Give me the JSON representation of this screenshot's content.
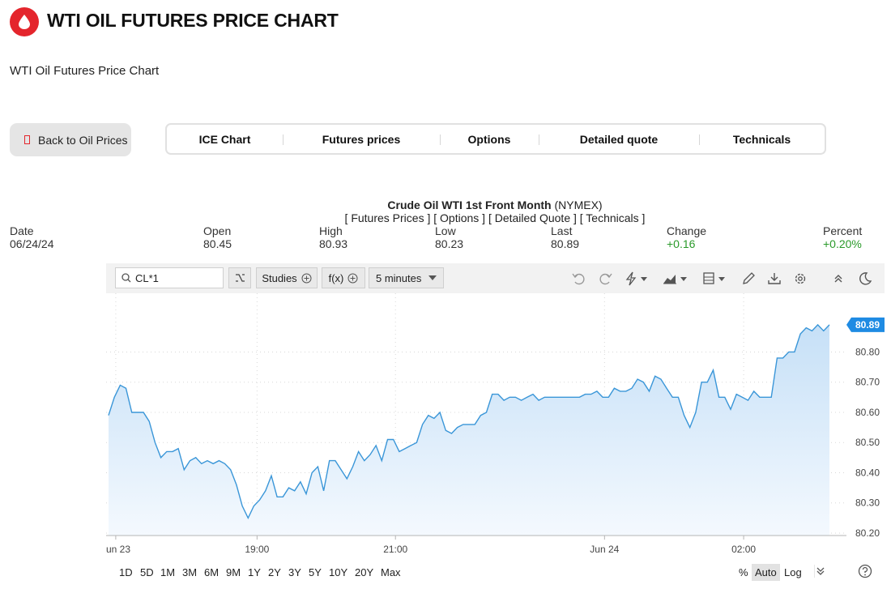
{
  "header": {
    "title": "WTI OIL FUTURES PRICE CHART",
    "subtitle": "WTI Oil Futures Price Chart",
    "logo_icon": "oil-drop-icon",
    "brand_color": "#e4252c"
  },
  "nav": {
    "back_label": "Back to Oil Prices",
    "tabs": [
      "ICE Chart",
      "Futures prices",
      "Options",
      "Detailed quote",
      "Technicals"
    ]
  },
  "quote": {
    "name": "Crude Oil WTI 1st Front Month",
    "exchange": "(NYMEX)",
    "links": "[ Futures Prices ] [ Options ] [ Detailed Quote ] [ Technicals ]",
    "labels": {
      "date": "Date",
      "open": "Open",
      "high": "High",
      "low": "Low",
      "last": "Last",
      "change": "Change",
      "percent": "Percent"
    },
    "values": {
      "date": "06/24/24",
      "open": "80.45",
      "high": "80.93",
      "low": "80.23",
      "last": "80.89",
      "change": "+0.16",
      "percent": "+0.20%"
    },
    "positive_color": "#2a9a2a"
  },
  "toolbar": {
    "symbol": "CL*1",
    "studies_label": "Studies",
    "fx_label": "f(x)",
    "interval_label": "5 minutes",
    "icons": [
      "search-icon",
      "compare-icon",
      "undo-icon",
      "redo-icon",
      "lightning-icon",
      "chart-type-icon",
      "layout-icon",
      "pencil-icon",
      "download-icon",
      "gear-icon",
      "collapse-icon",
      "moon-icon"
    ]
  },
  "chart_data": {
    "type": "area",
    "line_color": "#3a96d8",
    "fill_color": "#d6e9f9",
    "x_tick_labels": [
      "un 23",
      "19:00",
      "21:00",
      "Jun 24",
      "02:00"
    ],
    "y_ticks": [
      "80.80",
      "80.70",
      "80.60",
      "80.50",
      "80.40",
      "80.30",
      "80.20"
    ],
    "ylim": [
      80.2,
      80.93
    ],
    "last_value_label": "80.89",
    "grid": true,
    "values": [
      80.59,
      80.65,
      80.69,
      80.68,
      80.6,
      80.6,
      80.6,
      80.57,
      80.5,
      80.45,
      80.47,
      80.47,
      80.48,
      80.41,
      80.44,
      80.45,
      80.43,
      80.44,
      80.43,
      80.44,
      80.43,
      80.41,
      80.36,
      80.29,
      80.25,
      80.29,
      80.31,
      80.34,
      80.39,
      80.32,
      80.32,
      80.35,
      80.34,
      80.37,
      80.33,
      80.4,
      80.42,
      80.34,
      80.44,
      80.44,
      80.41,
      80.38,
      80.42,
      80.47,
      80.44,
      80.46,
      80.49,
      80.44,
      80.51,
      80.51,
      80.47,
      80.48,
      80.49,
      80.5,
      80.56,
      80.59,
      80.58,
      80.6,
      80.54,
      80.53,
      80.55,
      80.56,
      80.56,
      80.56,
      80.59,
      80.6,
      80.66,
      80.66,
      80.64,
      80.65,
      80.65,
      80.64,
      80.65,
      80.66,
      80.64,
      80.65,
      80.65,
      80.65,
      80.65,
      80.65,
      80.65,
      80.65,
      80.66,
      80.66,
      80.67,
      80.65,
      80.65,
      80.68,
      80.67,
      80.67,
      80.68,
      80.71,
      80.7,
      80.67,
      80.72,
      80.71,
      80.68,
      80.65,
      80.65,
      80.59,
      80.55,
      80.6,
      80.7,
      80.7,
      80.74,
      80.65,
      80.65,
      80.61,
      80.66,
      80.65,
      80.64,
      80.67,
      80.65,
      80.65,
      80.65,
      80.78,
      80.78,
      80.8,
      80.8,
      80.86,
      80.88,
      80.87,
      80.89,
      80.87,
      80.89
    ]
  },
  "bottom": {
    "ranges": [
      "1D",
      "5D",
      "1M",
      "3M",
      "6M",
      "9M",
      "1Y",
      "2Y",
      "3Y",
      "5Y",
      "10Y",
      "20Y",
      "Max"
    ],
    "percent_label": "%",
    "auto_label": "Auto",
    "log_label": "Log"
  }
}
